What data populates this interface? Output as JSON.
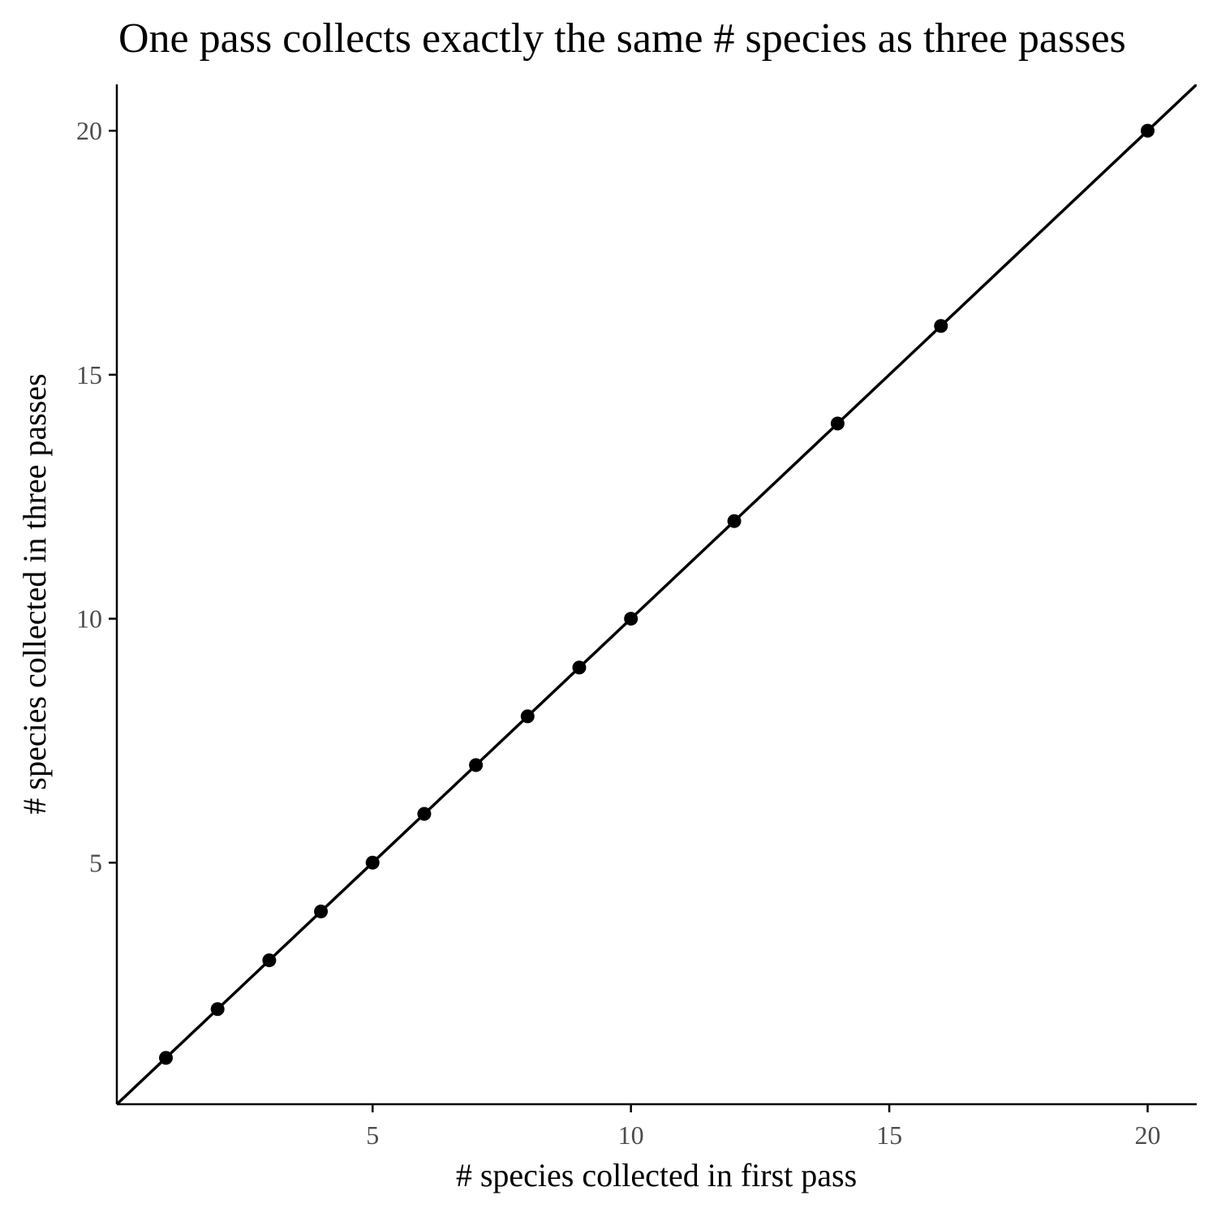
{
  "chart_data": {
    "type": "scatter",
    "title": "One pass collects exactly the same # species as three passes",
    "xlabel": "# species collected in first pass",
    "ylabel": "# species collected in three passes",
    "xlim": [
      0.05,
      20.95
    ],
    "ylim": [
      0.05,
      20.95
    ],
    "x_ticks": [
      5,
      10,
      15,
      20
    ],
    "y_ticks": [
      5,
      10,
      15,
      20
    ],
    "grid": false,
    "legend": "none",
    "reference_line": {
      "slope": 1,
      "intercept": 0
    },
    "points": [
      {
        "x": 1,
        "y": 1
      },
      {
        "x": 2,
        "y": 2
      },
      {
        "x": 3,
        "y": 3
      },
      {
        "x": 4,
        "y": 4
      },
      {
        "x": 5,
        "y": 5
      },
      {
        "x": 6,
        "y": 6
      },
      {
        "x": 7,
        "y": 7
      },
      {
        "x": 8,
        "y": 8
      },
      {
        "x": 9,
        "y": 9
      },
      {
        "x": 10,
        "y": 10
      },
      {
        "x": 12,
        "y": 12
      },
      {
        "x": 14,
        "y": 14
      },
      {
        "x": 16,
        "y": 16
      },
      {
        "x": 20,
        "y": 20
      }
    ],
    "colors": {
      "points": "#000000",
      "line": "#000000",
      "tick_text": "#4d4d4d"
    }
  }
}
